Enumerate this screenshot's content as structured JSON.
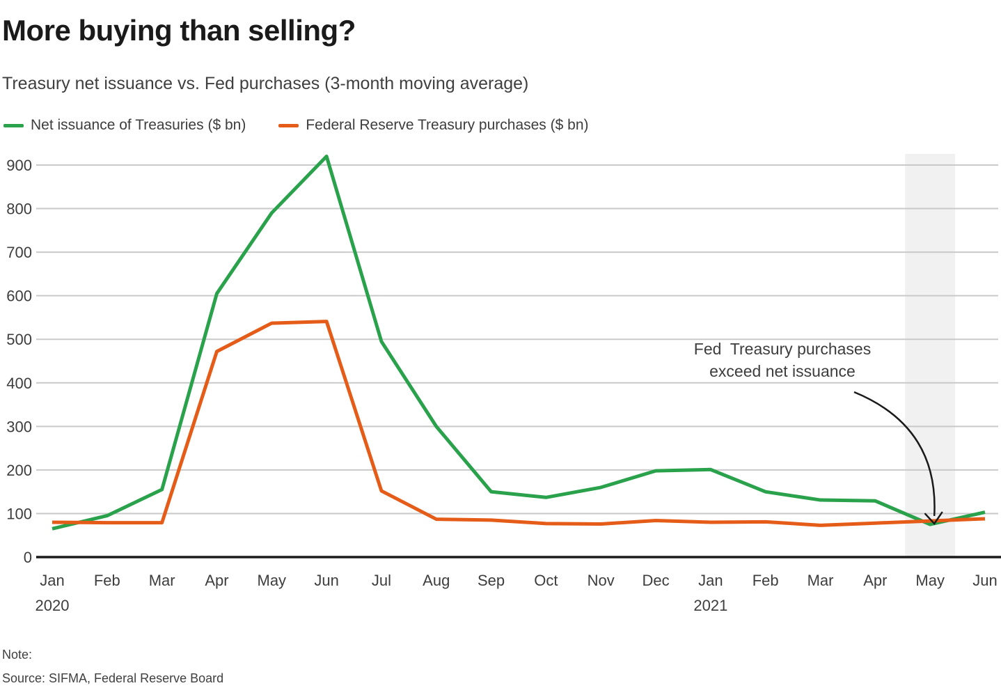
{
  "chart_data": {
    "type": "line",
    "title": "More buying than selling?",
    "subtitle": "Treasury net issuance vs. Fed purchases (3-month moving average)",
    "categories": [
      "Jan",
      "Feb",
      "Mar",
      "Apr",
      "May",
      "Jun",
      "Jul",
      "Aug",
      "Sep",
      "Oct",
      "Nov",
      "Dec",
      "Jan",
      "Feb",
      "Mar",
      "Apr",
      "May",
      "Jun"
    ],
    "year_labels": [
      {
        "text": "2020",
        "index": 0
      },
      {
        "text": "2021",
        "index": 12
      }
    ],
    "series": [
      {
        "id": "net-issuance",
        "name": "Net issuance of Treasuries ($ bn)",
        "color": "#2aa14b",
        "values": [
          65,
          95,
          155,
          605,
          790,
          920,
          495,
          300,
          150,
          137,
          160,
          198,
          201,
          150,
          131,
          129,
          75,
          103
        ]
      },
      {
        "id": "fed-purchases",
        "name": "Federal Reserve Treasury purchases ($ bn)",
        "color": "#e55c19",
        "values": [
          80,
          79,
          79,
          472,
          537,
          541,
          152,
          87,
          85,
          77,
          76,
          84,
          80,
          81,
          73,
          78,
          83,
          88
        ]
      }
    ],
    "ylim": [
      0,
      900
    ],
    "ytick_step": 100,
    "grid": "horizontal",
    "legend_position": "top-left",
    "highlight_band": {
      "category_index": 16,
      "color": "#f1f1f1"
    },
    "annotation": {
      "text_lines": [
        "Fed  Treasury purchases",
        "exceed net issuance"
      ],
      "points_to": {
        "category_index": 16,
        "value": 80
      }
    }
  },
  "footer": {
    "note_label": "Note:",
    "source": "Source: SIFMA, Federal Reserve Board"
  },
  "colors": {
    "grid": "#c9c9c9",
    "axis": "#1a1a1a",
    "text": "#3d3d3d",
    "band": "#f1f1f1"
  }
}
